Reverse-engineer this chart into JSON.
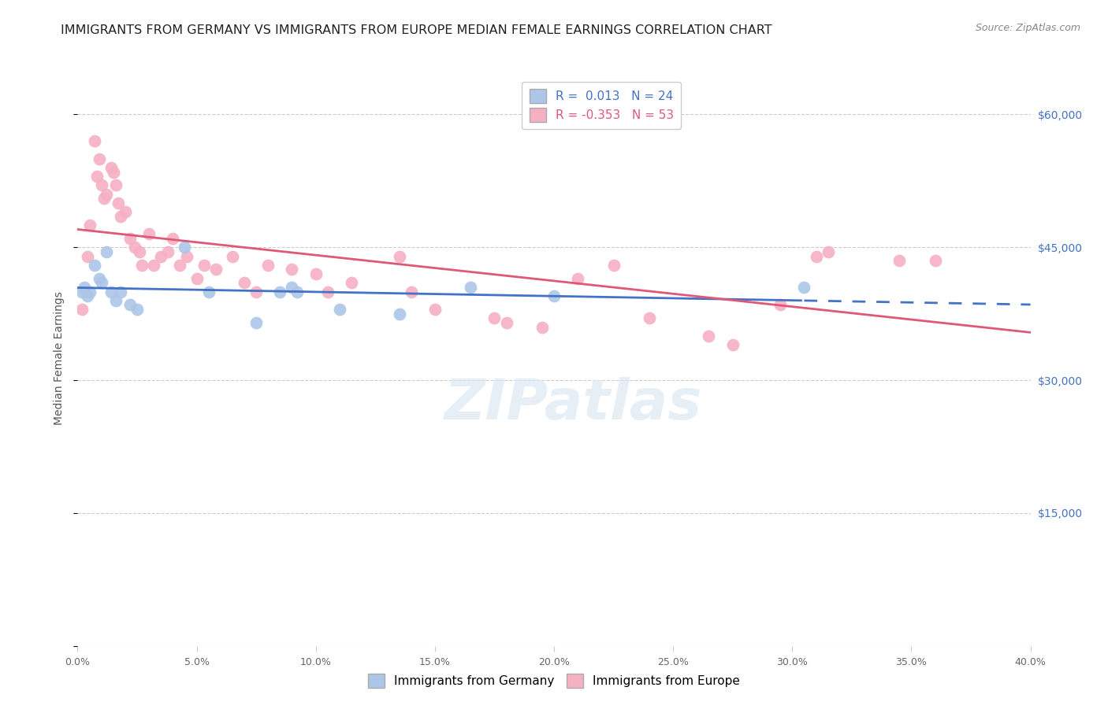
{
  "title": "IMMIGRANTS FROM GERMANY VS IMMIGRANTS FROM EUROPE MEDIAN FEMALE EARNINGS CORRELATION CHART",
  "source": "Source: ZipAtlas.com",
  "xlabel_vals": [
    0,
    5,
    10,
    15,
    20,
    25,
    30,
    35,
    40
  ],
  "ylabel": "Median Female Earnings",
  "ylabel_ticks": [
    0,
    15000,
    30000,
    45000,
    60000
  ],
  "ylabel_tick_labels": [
    "",
    "$15,000",
    "$30,000",
    "$45,000",
    "$60,000"
  ],
  "xlim": [
    0,
    40
  ],
  "ylim": [
    0,
    65000
  ],
  "germany_r": "0.013",
  "germany_n": "24",
  "europe_r": "-0.353",
  "europe_n": "53",
  "germany_color": "#adc6e8",
  "europe_color": "#f5b0c2",
  "germany_line_color": "#4472c4",
  "europe_line_color": "#e05878",
  "germany_scatter_x": [
    0.2,
    0.3,
    0.4,
    0.5,
    0.7,
    0.9,
    1.0,
    1.2,
    1.4,
    1.6,
    1.8,
    2.2,
    2.5,
    4.5,
    5.5,
    7.5,
    8.5,
    9.0,
    9.2,
    11.0,
    13.5,
    16.5,
    20.0,
    30.5
  ],
  "germany_scatter_y": [
    40000,
    40500,
    39500,
    40000,
    43000,
    41500,
    41000,
    44500,
    40000,
    39000,
    40000,
    38500,
    38000,
    45000,
    40000,
    36500,
    40000,
    40500,
    40000,
    38000,
    37500,
    40500,
    39500,
    40500
  ],
  "europe_scatter_x": [
    0.2,
    0.4,
    0.5,
    0.7,
    0.8,
    0.9,
    1.0,
    1.1,
    1.2,
    1.4,
    1.5,
    1.6,
    1.7,
    1.8,
    2.0,
    2.2,
    2.4,
    2.6,
    2.7,
    3.0,
    3.2,
    3.5,
    3.8,
    4.0,
    4.3,
    4.6,
    5.0,
    5.3,
    5.8,
    6.5,
    7.0,
    7.5,
    8.0,
    9.0,
    10.0,
    10.5,
    11.5,
    13.5,
    14.0,
    15.0,
    17.5,
    18.0,
    19.5,
    21.0,
    22.5,
    24.0,
    26.5,
    27.5,
    29.5,
    31.0,
    31.5,
    34.5,
    36.0
  ],
  "europe_scatter_y": [
    38000,
    44000,
    47500,
    57000,
    53000,
    55000,
    52000,
    50500,
    51000,
    54000,
    53500,
    52000,
    50000,
    48500,
    49000,
    46000,
    45000,
    44500,
    43000,
    46500,
    43000,
    44000,
    44500,
    46000,
    43000,
    44000,
    41500,
    43000,
    42500,
    44000,
    41000,
    40000,
    43000,
    42500,
    42000,
    40000,
    41000,
    44000,
    40000,
    38000,
    37000,
    36500,
    36000,
    41500,
    43000,
    37000,
    35000,
    34000,
    38500,
    44000,
    44500,
    43500,
    43500
  ],
  "watermark": "ZIPatlas",
  "background_color": "#ffffff",
  "grid_color": "#cccccc",
  "title_fontsize": 11.5,
  "axis_label_fontsize": 10,
  "tick_fontsize": 9,
  "legend_fontsize": 11,
  "source_fontsize": 9
}
